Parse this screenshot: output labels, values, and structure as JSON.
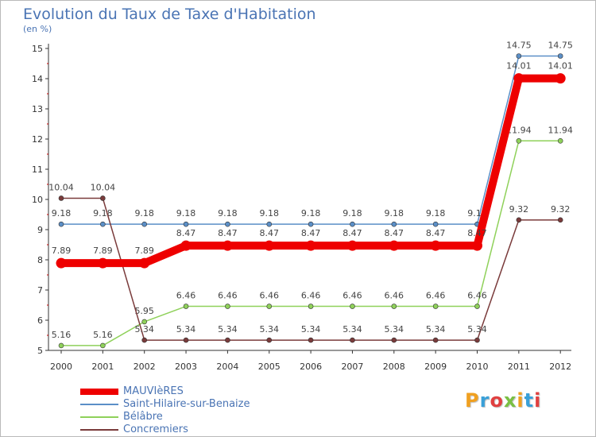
{
  "header": {
    "title": "Evolution du Taux de Taxe d'Habitation",
    "unit": "(en %)"
  },
  "chart_data": {
    "type": "line",
    "title": "Evolution du Taux de Taxe d'Habitation",
    "subtitle": "(en %)",
    "xlabel": "",
    "ylabel": "",
    "x": [
      "2000",
      "2001",
      "2002",
      "2003",
      "2004",
      "2005",
      "2006",
      "2007",
      "2008",
      "2009",
      "2010",
      "2011",
      "2012"
    ],
    "ylim": [
      5,
      15
    ],
    "yticks": [
      "5",
      "6",
      "7",
      "8",
      "9",
      "10",
      "11",
      "12",
      "13",
      "14",
      "15"
    ],
    "grid": false,
    "legend_position": "bottom-left",
    "series": [
      {
        "name": "Saint-Hilaire-sur-Benaize",
        "color": "#5b8fc7",
        "values": [
          9.18,
          9.18,
          9.18,
          9.18,
          9.18,
          9.18,
          9.18,
          9.18,
          9.18,
          9.18,
          9.18,
          14.75,
          14.75
        ],
        "labels": [
          "9.18",
          "9.18",
          "9.18",
          "9.18",
          "9.18",
          "9.18",
          "9.18",
          "9.18",
          "9.18",
          "9.18",
          "9.18",
          "14.75",
          "14.75"
        ]
      },
      {
        "name": "Bélâbre",
        "color": "#8fd15a",
        "values": [
          5.16,
          5.16,
          5.95,
          6.46,
          6.46,
          6.46,
          6.46,
          6.46,
          6.46,
          6.46,
          6.46,
          11.94,
          11.94
        ],
        "labels": [
          "5.16",
          "5.16",
          "5.95",
          "6.46",
          "6.46",
          "6.46",
          "6.46",
          "6.46",
          "6.46",
          "6.46",
          "6.46",
          "11.94",
          "11.94"
        ]
      },
      {
        "name": "Concremiers",
        "color": "#7a3b3b",
        "values": [
          10.04,
          10.04,
          5.34,
          5.34,
          5.34,
          5.34,
          5.34,
          5.34,
          5.34,
          5.34,
          5.34,
          9.32,
          9.32
        ],
        "labels": [
          "10.04",
          "10.04",
          "5.34",
          "5.34",
          "5.34",
          "5.34",
          "5.34",
          "5.34",
          "5.34",
          "5.34",
          "5.34",
          "9.32",
          "9.32"
        ]
      },
      {
        "name": "MAUVIèRES",
        "color": "#ee0000",
        "values": [
          7.89,
          7.89,
          7.89,
          8.47,
          8.47,
          8.47,
          8.47,
          8.47,
          8.47,
          8.47,
          8.47,
          14.01,
          14.01
        ],
        "labels": [
          "7.89",
          "7.89",
          "7.89",
          "8.47",
          "8.47",
          "8.47",
          "8.47",
          "8.47",
          "8.47",
          "8.47",
          "8.47",
          "14.01",
          "14.01"
        ]
      }
    ]
  },
  "legend": [
    {
      "label": "MAUVIèRES",
      "color": "#ee0000"
    },
    {
      "label": "Saint-Hilaire-sur-Benaize",
      "color": "#5b8fc7"
    },
    {
      "label": "Bélâbre",
      "color": "#8fd15a"
    },
    {
      "label": "Concremiers",
      "color": "#7a3b3b"
    }
  ],
  "logo": {
    "text": "Proxiti",
    "letters": [
      {
        "char": "P",
        "color": "#f0a020"
      },
      {
        "char": "r",
        "color": "#3aa0d8"
      },
      {
        "char": "o",
        "color": "#e04040"
      },
      {
        "char": "x",
        "color": "#7ac043"
      },
      {
        "char": "i",
        "color": "#f0a020"
      },
      {
        "char": "t",
        "color": "#3aa0d8"
      },
      {
        "char": "i",
        "color": "#e04040"
      }
    ]
  }
}
